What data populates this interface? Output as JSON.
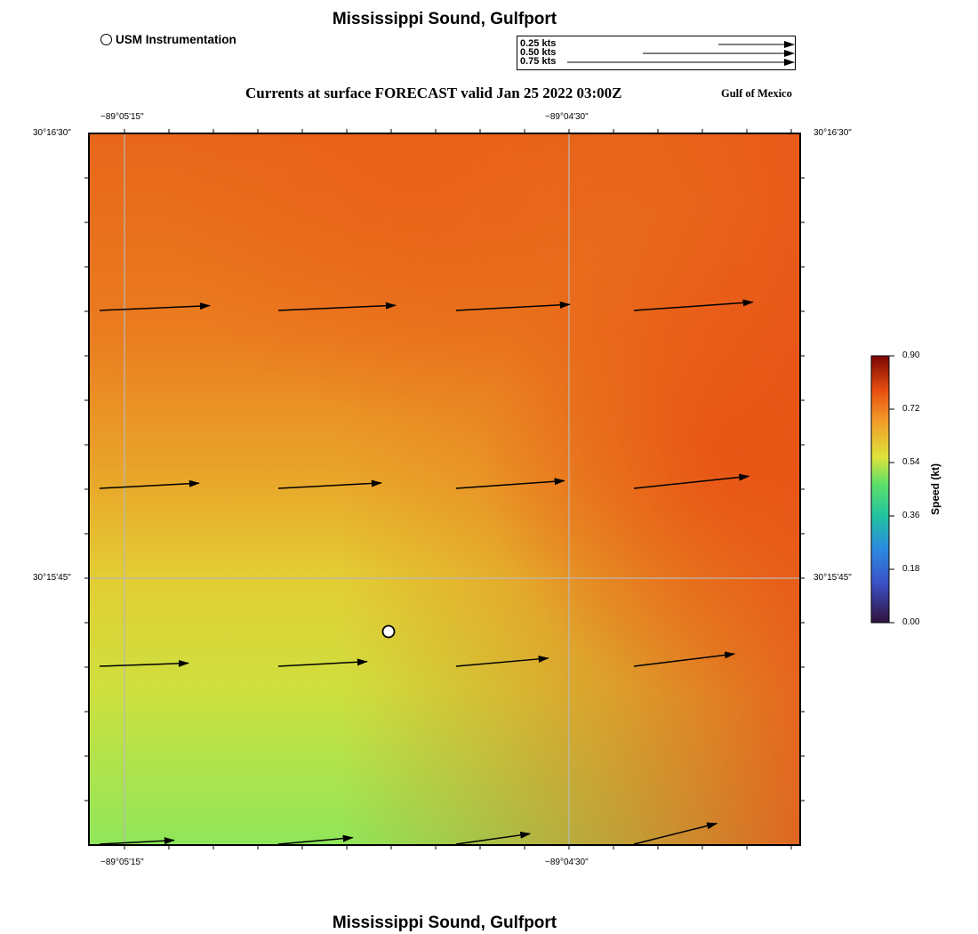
{
  "header": {
    "title": "Mississippi Sound, Gulfport",
    "subtitle": "Currents at surface FORECAST valid Jan 25 2022 03:00Z",
    "region": "Gulf of Mexico"
  },
  "footer": {
    "title": "Mississippi Sound, Gulfport"
  },
  "legend": {
    "station_label": "USM Instrumentation",
    "reference_vectors": [
      {
        "label": "0.25 kts",
        "speed": 0.25
      },
      {
        "label": "0.50 kts",
        "speed": 0.5
      },
      {
        "label": "0.75 kts",
        "speed": 0.75
      }
    ]
  },
  "map": {
    "x_ticks_top": [
      "−89°05'15\"",
      "−89°04'30\""
    ],
    "x_ticks_bottom": [
      "−89°05'15\"",
      "−89°04'30\""
    ],
    "y_ticks_left": [
      "30°16'30\"",
      "30°15'45\""
    ],
    "y_ticks_right": [
      "30°16'30\"",
      "30°15'45\""
    ],
    "station_marker": "USM Instrumentation",
    "current_vectors_kt": [
      [
        0.62,
        0.66,
        0.64,
        0.67
      ],
      [
        0.56,
        0.58,
        0.61,
        0.65
      ],
      [
        0.5,
        0.5,
        0.52,
        0.57
      ],
      [
        0.42,
        0.42,
        0.42,
        0.48
      ]
    ]
  },
  "colorbar": {
    "title": "Speed (kt)",
    "tick_labels": [
      "0.90",
      "0.72",
      "0.54",
      "0.36",
      "0.18",
      "0.00"
    ],
    "colors": [
      "#7a0403",
      "#e84f10",
      "#f29f2a",
      "#dde33a",
      "#5edf69",
      "#21c4a0",
      "#2b7fe0",
      "#30123b"
    ]
  },
  "colors": {
    "speed_high": "#e85a12",
    "speed_mid": "#e3c534",
    "speed_low": "#90e85a"
  }
}
